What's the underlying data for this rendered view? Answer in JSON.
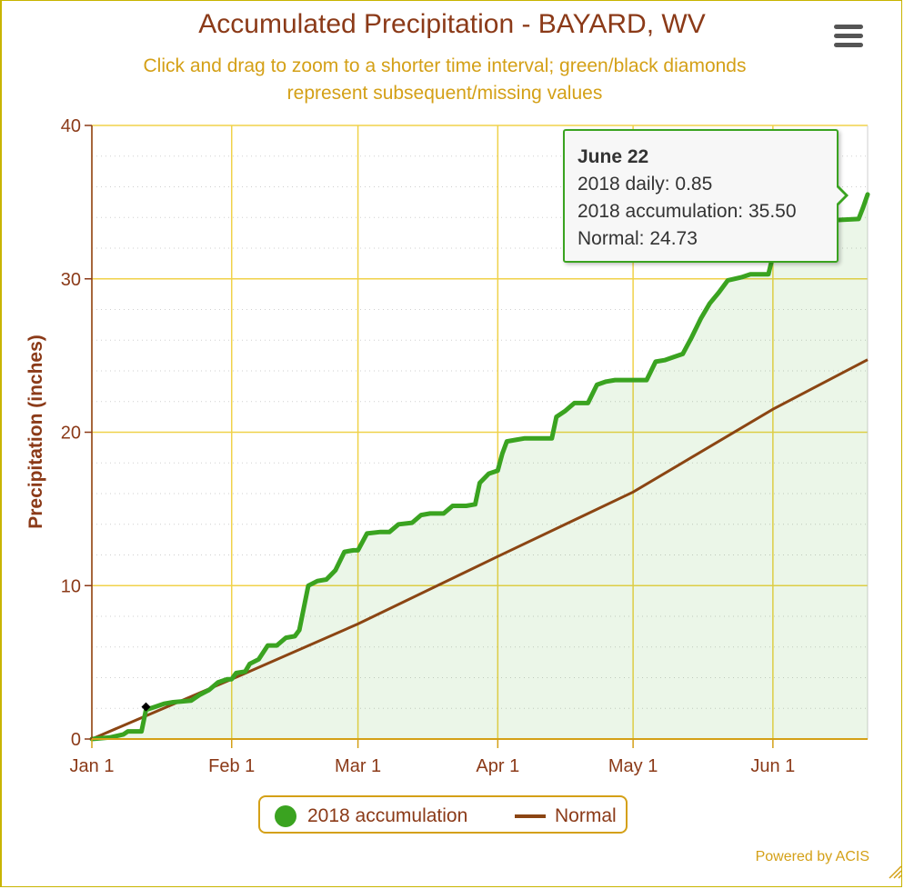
{
  "chart": {
    "title": "Accumulated Precipitation - BAYARD, WV",
    "subtitle_line1": "Click and drag to zoom to a shorter time interval; green/black diamonds",
    "subtitle_line2": "represent subsequent/missing values",
    "credit": "Powered by ACIS"
  },
  "colors": {
    "accumulation": "#3aa320",
    "normal": "#8b4513",
    "grid": "#f0d24a",
    "title": "#8b3a18",
    "subtitle": "#d4a017"
  },
  "tooltip": {
    "date": "June 22",
    "daily": "2018 daily: 0.85",
    "accumulation": "2018 accumulation: 35.50",
    "normal": "Normal: 24.73"
  },
  "legend": {
    "series1": "2018 accumulation",
    "series2": "Normal"
  },
  "chart_data": {
    "type": "area",
    "ylabel": "Precipitation (inches)",
    "ylim": [
      0,
      40
    ],
    "yticks": [
      0,
      10,
      20,
      30,
      40
    ],
    "x_range": [
      "2018-01-01",
      "2018-06-22"
    ],
    "xticks": [
      {
        "date": "2018-01-01",
        "label": "Jan 1"
      },
      {
        "date": "2018-02-01",
        "label": "Feb 1"
      },
      {
        "date": "2018-03-01",
        "label": "Mar 1"
      },
      {
        "date": "2018-04-01",
        "label": "Apr 1"
      },
      {
        "date": "2018-05-01",
        "label": "May 1"
      },
      {
        "date": "2018-06-01",
        "label": "Jun 1"
      }
    ],
    "grid": true,
    "legend_position": "bottom-center",
    "series": [
      {
        "name": "2018 accumulation",
        "points": [
          [
            "2018-01-01",
            0.0
          ],
          [
            "2018-01-05",
            0.1
          ],
          [
            "2018-01-08",
            0.3
          ],
          [
            "2018-01-09",
            0.5
          ],
          [
            "2018-01-12",
            0.5
          ],
          [
            "2018-01-13",
            1.9
          ],
          [
            "2018-01-15",
            2.1
          ],
          [
            "2018-01-17",
            2.3
          ],
          [
            "2018-01-19",
            2.4
          ],
          [
            "2018-01-23",
            2.5
          ],
          [
            "2018-01-25",
            2.9
          ],
          [
            "2018-01-27",
            3.2
          ],
          [
            "2018-01-29",
            3.7
          ],
          [
            "2018-01-31",
            3.9
          ],
          [
            "2018-02-01",
            3.9
          ],
          [
            "2018-02-02",
            4.3
          ],
          [
            "2018-02-04",
            4.4
          ],
          [
            "2018-02-05",
            4.9
          ],
          [
            "2018-02-07",
            5.2
          ],
          [
            "2018-02-09",
            6.1
          ],
          [
            "2018-02-11",
            6.1
          ],
          [
            "2018-02-13",
            6.6
          ],
          [
            "2018-02-15",
            6.7
          ],
          [
            "2018-02-16",
            7.1
          ],
          [
            "2018-02-18",
            10.0
          ],
          [
            "2018-02-20",
            10.3
          ],
          [
            "2018-02-22",
            10.4
          ],
          [
            "2018-02-24",
            11.0
          ],
          [
            "2018-02-26",
            12.2
          ],
          [
            "2018-02-28",
            12.3
          ],
          [
            "2018-03-01",
            12.3
          ],
          [
            "2018-03-03",
            13.4
          ],
          [
            "2018-03-06",
            13.5
          ],
          [
            "2018-03-08",
            13.5
          ],
          [
            "2018-03-10",
            14.0
          ],
          [
            "2018-03-13",
            14.1
          ],
          [
            "2018-03-15",
            14.6
          ],
          [
            "2018-03-17",
            14.7
          ],
          [
            "2018-03-20",
            14.7
          ],
          [
            "2018-03-22",
            15.2
          ],
          [
            "2018-03-25",
            15.2
          ],
          [
            "2018-03-27",
            15.3
          ],
          [
            "2018-03-28",
            16.7
          ],
          [
            "2018-03-30",
            17.3
          ],
          [
            "2018-04-01",
            17.5
          ],
          [
            "2018-04-02",
            18.6
          ],
          [
            "2018-04-03",
            19.4
          ],
          [
            "2018-04-05",
            19.5
          ],
          [
            "2018-04-07",
            19.6
          ],
          [
            "2018-04-13",
            19.6
          ],
          [
            "2018-04-14",
            21.0
          ],
          [
            "2018-04-16",
            21.4
          ],
          [
            "2018-04-18",
            21.9
          ],
          [
            "2018-04-21",
            21.9
          ],
          [
            "2018-04-23",
            23.1
          ],
          [
            "2018-04-25",
            23.3
          ],
          [
            "2018-04-27",
            23.4
          ],
          [
            "2018-05-04",
            23.4
          ],
          [
            "2018-05-06",
            24.6
          ],
          [
            "2018-05-08",
            24.7
          ],
          [
            "2018-05-10",
            24.9
          ],
          [
            "2018-05-12",
            25.1
          ],
          [
            "2018-05-14",
            26.2
          ],
          [
            "2018-05-16",
            27.4
          ],
          [
            "2018-05-18",
            28.4
          ],
          [
            "2018-05-20",
            29.1
          ],
          [
            "2018-05-22",
            29.9
          ],
          [
            "2018-05-25",
            30.1
          ],
          [
            "2018-05-27",
            30.3
          ],
          [
            "2018-05-31",
            30.3
          ],
          [
            "2018-06-01",
            31.5
          ],
          [
            "2018-06-03",
            32.8
          ],
          [
            "2018-06-05",
            33.0
          ],
          [
            "2018-06-09",
            33.0
          ],
          [
            "2018-06-11",
            33.6
          ],
          [
            "2018-06-13",
            33.8
          ],
          [
            "2018-06-20",
            33.9
          ],
          [
            "2018-06-21",
            34.65
          ],
          [
            "2018-06-22",
            35.5
          ]
        ]
      },
      {
        "name": "Normal",
        "points": [
          [
            "2018-01-01",
            0.0
          ],
          [
            "2018-02-01",
            3.9
          ],
          [
            "2018-03-01",
            7.5
          ],
          [
            "2018-04-01",
            11.9
          ],
          [
            "2018-05-01",
            16.1
          ],
          [
            "2018-06-01",
            21.5
          ],
          [
            "2018-06-22",
            24.73
          ]
        ]
      }
    ],
    "missing_markers": [
      {
        "date": "2018-01-13",
        "value": 2.1
      }
    ]
  }
}
